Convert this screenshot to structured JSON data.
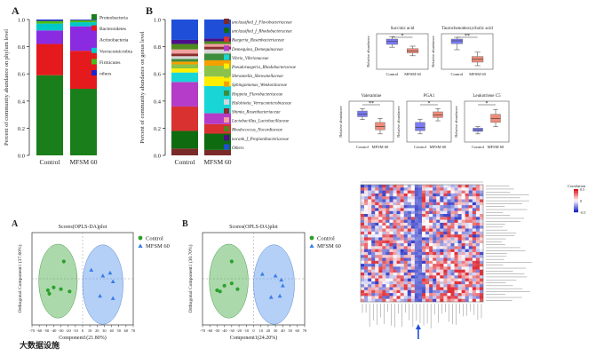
{
  "colors": {
    "phylum": [
      "#1a7f1a",
      "#e41a1c",
      "#8a2be2",
      "#00c8c8",
      "#4cbb17",
      "#1f1fd0"
    ],
    "genus": [
      "#7b2a2a",
      "#0f6b0f",
      "#d93030",
      "#b43cc8",
      "#19d6d6",
      "#ffee00",
      "#8bc34a",
      "#f6a000",
      "#3c8c3c",
      "#d6d6d6",
      "#8a2e2e",
      "#f2a0a0",
      "#4e8a1e",
      "#4b0f8a",
      "#1f4fd8"
    ],
    "control": "#2ca02c",
    "mfsm": "#3a7ee6",
    "box_control": "#7b7bf5",
    "box_mfsm": "#ee8b7a"
  },
  "chart_data": [
    {
      "panel": "A",
      "type": "bar",
      "stacked": true,
      "title": "",
      "ylabel": "Percent of community abundance on phylum level",
      "categories": [
        "Control",
        "MFSM 60"
      ],
      "yticks": [
        "0.0",
        "0.2",
        "0.4",
        "0.6",
        "0.8",
        "1.0"
      ],
      "ylim": [
        0,
        1
      ],
      "series": [
        {
          "name": "Proteobacteria",
          "values": [
            0.59,
            0.49
          ]
        },
        {
          "name": "Bacteroidetes",
          "values": [
            0.23,
            0.28
          ]
        },
        {
          "name": "Actinobacteria",
          "values": [
            0.1,
            0.18
          ]
        },
        {
          "name": "Verrucomicrobia",
          "values": [
            0.05,
            0.03
          ]
        },
        {
          "name": "Firmicutes",
          "values": [
            0.02,
            0.015
          ]
        },
        {
          "name": "others",
          "values": [
            0.01,
            0.005
          ]
        }
      ]
    },
    {
      "panel": "B",
      "type": "bar",
      "stacked": true,
      "ylabel": "Percent of community abundance on genus level",
      "categories": [
        "Control",
        "MFSM 60"
      ],
      "yticks": [
        "0.0",
        "0.2",
        "0.4",
        "0.6",
        "0.8",
        "1.0"
      ],
      "ylim": [
        0,
        1
      ],
      "series": [
        {
          "name": "unclassified_f_Flavobacteriaceae",
          "values": [
            0.05,
            0.04
          ]
        },
        {
          "name": "unclassified_f_Rhodobacteraceae",
          "values": [
            0.13,
            0.12
          ]
        },
        {
          "name": "Ruegeria_Rosenbacteriaceae",
          "values": [
            0.18,
            0.07
          ]
        },
        {
          "name": "Demequina_Demequinaceae",
          "values": [
            0.18,
            0.08
          ]
        },
        {
          "name": "Vibrio_Vibrionaceae",
          "values": [
            0.07,
            0.2
          ]
        },
        {
          "name": "Pseudoruegeria_Rhodobacteraceae",
          "values": [
            0.03,
            0.07
          ]
        },
        {
          "name": "Shewanella_Shewanellaceae",
          "values": [
            0.03,
            0.08
          ]
        },
        {
          "name": "Sphingomonas_Wenkoniiaceae",
          "values": [
            0.02,
            0.04
          ]
        },
        {
          "name": "Hoppeia_Flavobacteriaceae",
          "values": [
            0.02,
            0.05
          ]
        },
        {
          "name": "Halobiotia_Verrucomicrobiaceae",
          "values": [
            0.02,
            0.03
          ]
        },
        {
          "name": "Shimia_Rosenbacteriaceae",
          "values": [
            0.02,
            0.02
          ]
        },
        {
          "name": "Lactobacillus_Lactobacillaceae",
          "values": [
            0.03,
            0.02
          ]
        },
        {
          "name": "Rhodococcus_Nocardiaceae",
          "values": [
            0.04,
            0.02
          ]
        },
        {
          "name": "norank_f_Propionibacteriaceae",
          "values": [
            0.03,
            0.02
          ]
        },
        {
          "name": "Others",
          "values": [
            0.15,
            0.14
          ]
        }
      ]
    },
    {
      "type": "box",
      "ylabel": "Relative abundance",
      "categories": [
        "Control",
        "MFSM 60"
      ],
      "plots": [
        {
          "title": "Succinic acid",
          "sig": "*",
          "control": [
            0.62,
            0.7,
            0.78,
            0.85,
            0.92
          ],
          "mfsm": [
            0.38,
            0.46,
            0.52,
            0.58,
            0.65
          ]
        },
        {
          "title": "Taurochenodeoxycholic acid",
          "sig": "**",
          "control": [
            0.55,
            0.72,
            0.8,
            0.85,
            0.9
          ],
          "mfsm": [
            0.1,
            0.2,
            0.28,
            0.36,
            0.48
          ]
        },
        {
          "title": "Valeramine",
          "sig": "**",
          "control": [
            0.55,
            0.62,
            0.68,
            0.76,
            0.82
          ],
          "mfsm": [
            0.2,
            0.3,
            0.38,
            0.48,
            0.58
          ]
        },
        {
          "title": "PGA1",
          "sig": "*",
          "control": [
            0.2,
            0.28,
            0.36,
            0.48,
            0.56
          ],
          "mfsm": [
            0.52,
            0.6,
            0.66,
            0.74,
            0.82
          ]
        },
        {
          "title": "Leukotriene C5",
          "sig": "*",
          "control": [
            0.2,
            0.26,
            0.3,
            0.34,
            0.38
          ],
          "mfsm": [
            0.38,
            0.48,
            0.58,
            0.68,
            0.8
          ]
        }
      ]
    },
    {
      "panel": "A",
      "type": "scatter",
      "title": "Scores(OPLS-DA)plot",
      "xlabel": "Component1(21.80%)",
      "ylabel": "Orthogonal Component1 (37.60%)",
      "xticks": [
        "-70",
        "-60",
        "-50",
        "-40",
        "-30",
        "-20",
        "-10",
        "0",
        "10",
        "20",
        "30",
        "40",
        "50",
        "60",
        "70"
      ],
      "xlim": [
        -70,
        70
      ],
      "ylim": [
        -80,
        80
      ],
      "series": [
        {
          "name": "Control",
          "points": [
            [
              -48,
              -20
            ],
            [
              -46,
              -26
            ],
            [
              -40,
              -15
            ],
            [
              -30,
              -18
            ],
            [
              -18,
              -22
            ],
            [
              -26,
              30
            ]
          ]
        },
        {
          "name": "MFSM 60",
          "points": [
            [
              12,
              15
            ],
            [
              28,
              5
            ],
            [
              38,
              10
            ],
            [
              42,
              -5
            ],
            [
              42,
              -34
            ],
            [
              24,
              -30
            ]
          ]
        }
      ]
    },
    {
      "panel": "B",
      "type": "scatter",
      "title": "Scores(OPLS-DA)plot",
      "xlabel": "Component1(24.20%)",
      "ylabel": "Orthogonal Component1 (30.70%)",
      "xticks": [
        "-70",
        "-60",
        "-50",
        "-40",
        "-30",
        "-20",
        "-10",
        "0",
        "10",
        "20",
        "30",
        "40",
        "50",
        "60",
        "70"
      ],
      "xlim": [
        -70,
        70
      ],
      "ylim": [
        -80,
        80
      ],
      "series": [
        {
          "name": "Control",
          "points": [
            [
              -50,
              -20
            ],
            [
              -46,
              -22
            ],
            [
              -40,
              -12
            ],
            [
              -30,
              -8
            ],
            [
              -22,
              -18
            ],
            [
              -30,
              30
            ]
          ]
        },
        {
          "name": "MFSM 60",
          "points": [
            [
              12,
              8
            ],
            [
              30,
              5
            ],
            [
              38,
              -2
            ],
            [
              40,
              -12
            ],
            [
              36,
              -30
            ],
            [
              24,
              -32
            ]
          ]
        }
      ]
    },
    {
      "type": "heatmap",
      "legend_title": "Correlation",
      "legend_ticks": [
        "0.5",
        "0",
        "-0.5"
      ],
      "rows": 40,
      "cols": 34
    }
  ],
  "watermark": "大数据设施"
}
